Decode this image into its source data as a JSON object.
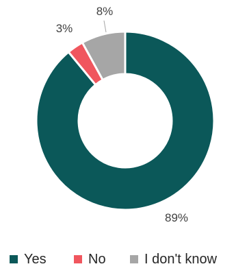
{
  "chart_data": {
    "type": "pie",
    "donut": true,
    "categories": [
      "Yes",
      "No",
      "I don't know"
    ],
    "values": [
      89,
      3,
      8
    ],
    "data_labels": [
      "89%",
      "3%",
      "8%"
    ],
    "colors": [
      "#0b5859",
      "#f0565e",
      "#a6a6a6"
    ],
    "legend": {
      "position": "bottom",
      "entries": [
        "Yes",
        "No",
        "I don't know"
      ]
    },
    "title": "",
    "start_angle_deg": 0,
    "direction": "clockwise"
  }
}
